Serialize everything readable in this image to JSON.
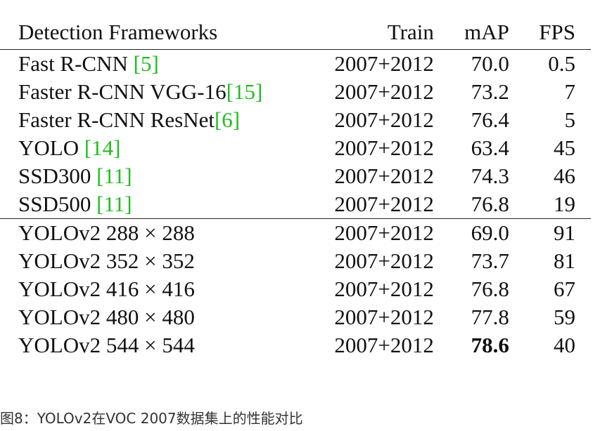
{
  "table": {
    "headers": {
      "framework": "Detection Frameworks",
      "train": "Train",
      "map": "mAP",
      "fps": "FPS"
    },
    "groups": [
      [
        {
          "name": "Fast R-CNN ",
          "ref": "[5]",
          "train": "2007+2012",
          "map": "70.0",
          "fps": "0.5"
        },
        {
          "name": "Faster R-CNN VGG-16",
          "ref": "[15]",
          "train": "2007+2012",
          "map": "73.2",
          "fps": "7"
        },
        {
          "name": "Faster R-CNN ResNet",
          "ref": "[6]",
          "train": "2007+2012",
          "map": "76.4",
          "fps": "5"
        },
        {
          "name": "YOLO ",
          "ref": "[14]",
          "train": "2007+2012",
          "map": "63.4",
          "fps": "45"
        },
        {
          "name": "SSD300 ",
          "ref": "[11]",
          "train": "2007+2012",
          "map": "74.3",
          "fps": "46"
        },
        {
          "name": "SSD500 ",
          "ref": "[11]",
          "train": "2007+2012",
          "map": "76.8",
          "fps": "19"
        }
      ],
      [
        {
          "name": "YOLOv2 288 × 288",
          "ref": "",
          "train": "2007+2012",
          "map": "69.0",
          "fps": "91"
        },
        {
          "name": "YOLOv2 352 × 352",
          "ref": "",
          "train": "2007+2012",
          "map": "73.7",
          "fps": "81"
        },
        {
          "name": "YOLOv2 416 × 416",
          "ref": "",
          "train": "2007+2012",
          "map": "76.8",
          "fps": "67"
        },
        {
          "name": "YOLOv2 480 × 480",
          "ref": "",
          "train": "2007+2012",
          "map": "77.8",
          "fps": "59"
        },
        {
          "name": "YOLOv2 544 × 544",
          "ref": "",
          "train": "2007+2012",
          "map": "78.6",
          "fps": "40",
          "map_bold": true
        }
      ]
    ]
  },
  "caption": "图8：YOLOv2在VOC 2007数据集上的性能对比",
  "colors": {
    "reference_link": "#1fbf1f",
    "rule": "#222222"
  }
}
